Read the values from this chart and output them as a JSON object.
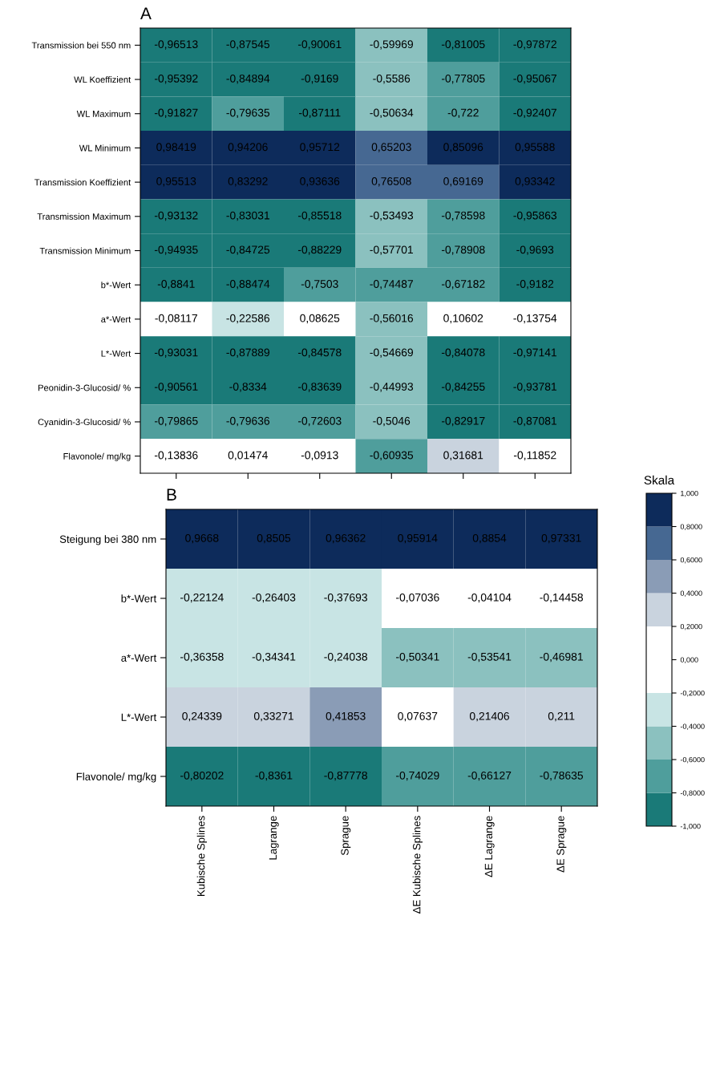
{
  "chart_data": [
    {
      "type": "heatmap",
      "title": "A",
      "categories": [
        null,
        null,
        null,
        null,
        null,
        null
      ],
      "y_categories": [
        "Transmission bei 550 nm",
        "WL Koeffizient",
        "WL Maximum",
        "WL Minimum",
        "Transmission Koeffizient",
        "Transmission Maximum",
        "Transmission Minimum",
        "b*-Wert",
        "a*-Wert",
        "L*-Wert",
        "Peonidin-3-Glucosid/ %",
        "Cyanidin-3-Glucosid/ %",
        "Flavonole/ mg/kg"
      ],
      "cells": [
        [
          -0.96513,
          -0.87545,
          -0.90061,
          -0.59969,
          -0.81005,
          -0.97872
        ],
        [
          -0.95392,
          -0.84894,
          -0.9169,
          -0.5586,
          -0.77805,
          -0.95067
        ],
        [
          -0.91827,
          -0.79635,
          -0.87111,
          -0.50634,
          -0.722,
          -0.92407
        ],
        [
          0.98419,
          0.94206,
          0.95712,
          0.65203,
          0.85096,
          0.95588
        ],
        [
          0.95513,
          0.83292,
          0.93636,
          0.76508,
          0.69169,
          0.93342
        ],
        [
          -0.93132,
          -0.83031,
          -0.85518,
          -0.53493,
          -0.78598,
          -0.95863
        ],
        [
          -0.94935,
          -0.84725,
          -0.88229,
          -0.57701,
          -0.78908,
          -0.9693
        ],
        [
          -0.8841,
          -0.88474,
          -0.7503,
          -0.74487,
          -0.67182,
          -0.9182
        ],
        [
          -0.08117,
          -0.22586,
          0.08625,
          -0.56016,
          0.10602,
          -0.13754
        ],
        [
          -0.93031,
          -0.87889,
          -0.84578,
          -0.54669,
          -0.84078,
          -0.97141
        ],
        [
          -0.90561,
          -0.8334,
          -0.83639,
          -0.44993,
          -0.84255,
          -0.93781
        ],
        [
          -0.79865,
          -0.79636,
          -0.72603,
          -0.5046,
          -0.82917,
          -0.87081
        ],
        [
          -0.13836,
          0.01474,
          -0.0913,
          -0.60935,
          0.31681,
          -0.11852
        ]
      ],
      "cell_labels": [
        [
          "-0,96513",
          "-0,87545",
          "-0,90061",
          "-0,59969",
          "-0,81005",
          "-0,97872"
        ],
        [
          "-0,95392",
          "-0,84894",
          "-0,9169",
          "-0,5586",
          "-0,77805",
          "-0,95067"
        ],
        [
          "-0,91827",
          "-0,79635",
          "-0,87111",
          "-0,50634",
          "-0,722",
          "-0,92407"
        ],
        [
          "0,98419",
          "0,94206",
          "0,95712",
          "0,65203",
          "0,85096",
          "0,95588"
        ],
        [
          "0,95513",
          "0,83292",
          "0,93636",
          "0,76508",
          "0,69169",
          "0,93342"
        ],
        [
          "-0,93132",
          "-0,83031",
          "-0,85518",
          "-0,53493",
          "-0,78598",
          "-0,95863"
        ],
        [
          "-0,94935",
          "-0,84725",
          "-0,88229",
          "-0,57701",
          "-0,78908",
          "-0,9693"
        ],
        [
          "-0,8841",
          "-0,88474",
          "-0,7503",
          "-0,74487",
          "-0,67182",
          "-0,9182"
        ],
        [
          "-0,08117",
          "-0,22586",
          "0,08625",
          "-0,56016",
          "0,10602",
          "-0,13754"
        ],
        [
          "-0,93031",
          "-0,87889",
          "-0,84578",
          "-0,54669",
          "-0,84078",
          "-0,97141"
        ],
        [
          "-0,90561",
          "-0,8334",
          "-0,83639",
          "-0,44993",
          "-0,84255",
          "-0,93781"
        ],
        [
          "-0,79865",
          "-0,79636",
          "-0,72603",
          "-0,5046",
          "-0,82917",
          "-0,87081"
        ],
        [
          "-0,13836",
          "0,01474",
          "-0,0913",
          "-0,60935",
          "0,31681",
          "-0,11852"
        ]
      ],
      "tick_labels": "y",
      "colors": [
        "#1a7a78",
        "#4f9e9c",
        "#8bc1bf",
        "#c8e4e4",
        "#ffffff",
        "#ffffff",
        "#c9d3de",
        "#8a9cb6",
        "#466892",
        "#0d2b5b"
      ]
    },
    {
      "type": "heatmap",
      "title": "B",
      "categories": [
        "Kubische Splines",
        "Lagrange",
        "Sprague",
        "ΔE Kubische Splines",
        "ΔE Lagrange",
        "ΔE Sprague"
      ],
      "y_categories": [
        "Steigung bei 380 nm",
        "b*-Wert",
        "a*-Wert",
        "L*-Wert",
        "Flavonole/ mg/kg"
      ],
      "cells": [
        [
          0.9668,
          0.8505,
          0.96362,
          0.95914,
          0.8854,
          0.97331
        ],
        [
          -0.22124,
          -0.26403,
          -0.37693,
          -0.07036,
          -0.04104,
          -0.14458
        ],
        [
          -0.36358,
          -0.34341,
          -0.24038,
          -0.50341,
          -0.53541,
          -0.46981
        ],
        [
          0.24339,
          0.33271,
          0.41853,
          0.07637,
          0.21406,
          0.211
        ],
        [
          -0.80202,
          -0.8361,
          -0.87778,
          -0.74029,
          -0.66127,
          -0.78635
        ]
      ],
      "cell_labels": [
        [
          "0,9668",
          "0,8505",
          "0,96362",
          "0,95914",
          "0,8854",
          "0,97331"
        ],
        [
          "-0,22124",
          "-0,26403",
          "-0,37693",
          "-0,07036",
          "-0,04104",
          "-0,14458"
        ],
        [
          "-0,36358",
          "-0,34341",
          "-0,24038",
          "-0,50341",
          "-0,53541",
          "-0,46981"
        ],
        [
          "0,24339",
          "0,33271",
          "0,41853",
          "0,07637",
          "0,21406",
          "0,211"
        ],
        [
          "-0,80202",
          "-0,8361",
          "-0,87778",
          "-0,74029",
          "-0,66127",
          "-0,78635"
        ]
      ],
      "clim": [
        -1,
        1
      ],
      "clabel": "Skala",
      "cticks": [
        {
          "value": 1,
          "label": "1,000"
        },
        {
          "value": 0.8,
          "label": "0,8000"
        },
        {
          "value": 0.6,
          "label": "0,6000"
        },
        {
          "value": 0.4,
          "label": "0,4000"
        },
        {
          "value": 0.2,
          "label": "0,2000"
        },
        {
          "value": 0,
          "label": "0,000"
        },
        {
          "value": -0.2,
          "label": "-0,2000"
        },
        {
          "value": -0.4,
          "label": "-0,4000"
        },
        {
          "value": -0.6,
          "label": "-0,6000"
        },
        {
          "value": -0.8,
          "label": "-0,8000"
        },
        {
          "value": -1,
          "label": "-1,000"
        }
      ],
      "colors": [
        "#1a7a78",
        "#4f9e9c",
        "#8bc1bf",
        "#c8e4e4",
        "#ffffff",
        "#ffffff",
        "#c9d3de",
        "#8a9cb6",
        "#466892",
        "#0d2b5b"
      ]
    }
  ]
}
